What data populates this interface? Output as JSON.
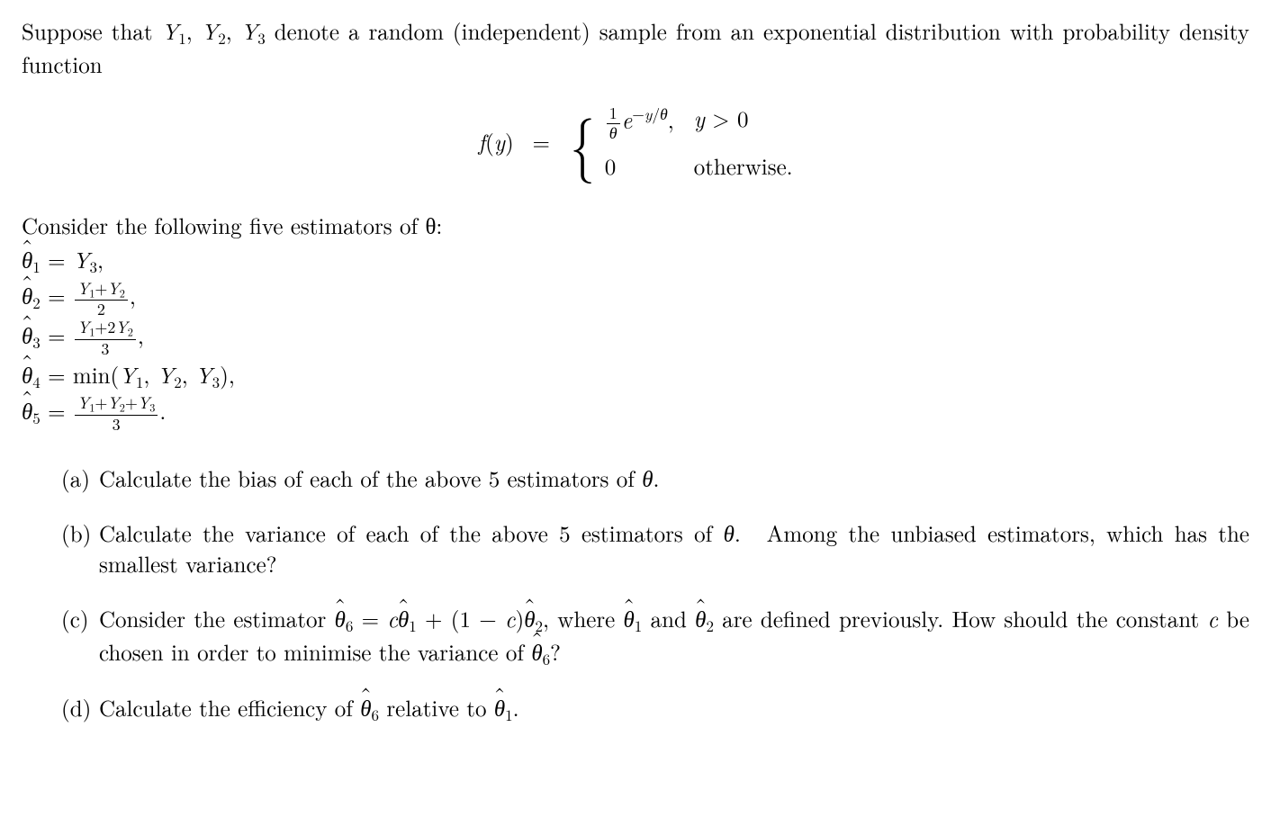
{
  "intro": "Suppose that Y₁, Y₂, Y₃ denote a random (independent) sample from an exponential distribution with probability density function",
  "equation": {
    "lhs": "f(y) =",
    "case1_expr_prefix": "",
    "case1_cond": "y > 0",
    "case2_expr": "0",
    "case2_cond": "otherwise."
  },
  "consider": "Consider the following five estimators of θ:",
  "estimators": {
    "e1": "θ̂₁ = Y₃,",
    "e2_lhs": "θ̂₂ =",
    "e2_num": "Y₁ + Y₂",
    "e2_den": "2",
    "e3_lhs": "θ̂₃ =",
    "e3_num": "Y₁ + 2Y₂",
    "e3_den": "3",
    "e4": "θ̂₄ = min(Y₁, Y₂, Y₃),",
    "e5_lhs": "θ̂₅ =",
    "e5_num": "Y₁ + Y₂ + Y₃",
    "e5_den": "3"
  },
  "parts": {
    "a": {
      "marker": "(a)",
      "text": "Calculate the bias of each of the above 5 estimators of θ."
    },
    "b": {
      "marker": "(b)",
      "text": "Calculate the variance of each of the above 5 estimators of θ.  Among the unbiased estimators, which has the smallest variance?"
    },
    "c": {
      "marker": "(c)",
      "text_full": "Consider the estimator θ̂₆ = cθ̂₁ + (1 − c)θ̂₂, where θ̂₁ and θ̂₂ are defined previously. How should the constant c be chosen in order to minimise the variance of θ̂₆?"
    },
    "d": {
      "marker": "(d)",
      "text": "Calculate the efficiency of θ̂₆ relative to θ̂₁."
    }
  }
}
